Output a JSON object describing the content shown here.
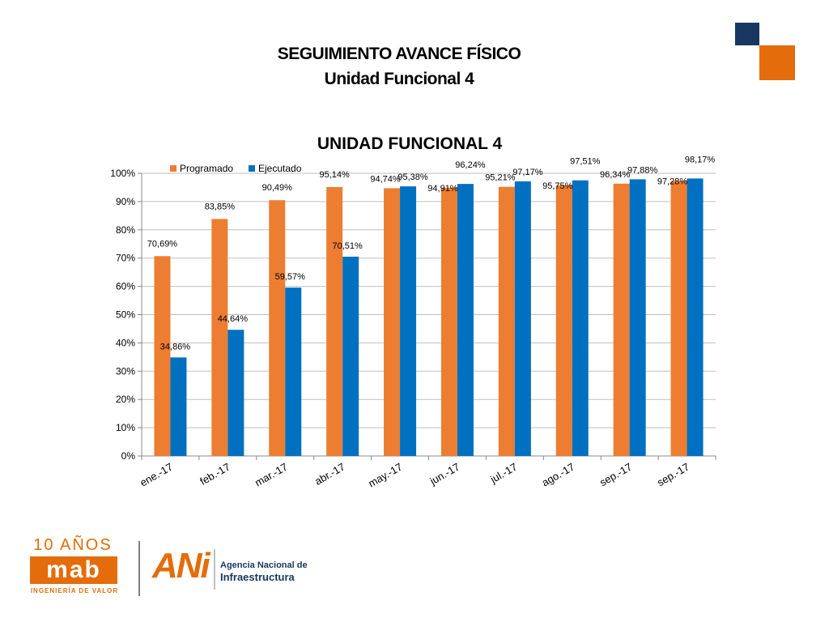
{
  "header": {
    "title": "SEGUIMIENTO AVANCE FÍSICO",
    "subtitle": "Unidad Funcional 4"
  },
  "colors": {
    "programado": "#ed7d31",
    "ejecutado": "#0070c0",
    "navy": "#17375e",
    "brand_orange": "#e46c0a"
  },
  "chart_data": {
    "type": "bar",
    "title": "UNIDAD FUNCIONAL 4",
    "categories": [
      "ene.-17",
      "feb.-17",
      "mar.-17",
      "abr.-17",
      "may.-17",
      "jun.-17",
      "jul.-17",
      "ago.-17",
      "sep.-17",
      "sep.-17"
    ],
    "series": [
      {
        "name": "Programado",
        "values": [
          70.69,
          83.85,
          90.49,
          95.14,
          94.74,
          94.91,
          95.21,
          95.75,
          96.34,
          97.28
        ],
        "labels": [
          "70,69%",
          "83,85%",
          "90,49%",
          "95,14%",
          "94,74%",
          "94,91%",
          "95,21%",
          "95,75%",
          "96,34%",
          "97,28%"
        ]
      },
      {
        "name": "Ejecutado",
        "values": [
          34.86,
          44.64,
          59.57,
          70.51,
          95.38,
          96.24,
          97.17,
          97.51,
          97.88,
          98.17
        ],
        "labels": [
          "34,86%",
          "44,64%",
          "59,57%",
          "70,51%",
          "95,38%",
          "96,24%",
          "97,17%",
          "97,51%",
          "97,88%",
          "98,17%"
        ]
      }
    ],
    "ylim": [
      0,
      100
    ],
    "yticks": [
      "0%",
      "10%",
      "20%",
      "30%",
      "40%",
      "50%",
      "60%",
      "70%",
      "80%",
      "90%",
      "100%"
    ],
    "grid": true,
    "legend": "top-left"
  },
  "logos": {
    "mab_years": "10 AÑOS",
    "mab_mark": "mab",
    "mab_tagline": "INGENIERÍA DE VALOR",
    "ani_mark": "ANi",
    "ani_name_line1": "Agencia Nacional de",
    "ani_name_line2": "Infraestructura"
  }
}
